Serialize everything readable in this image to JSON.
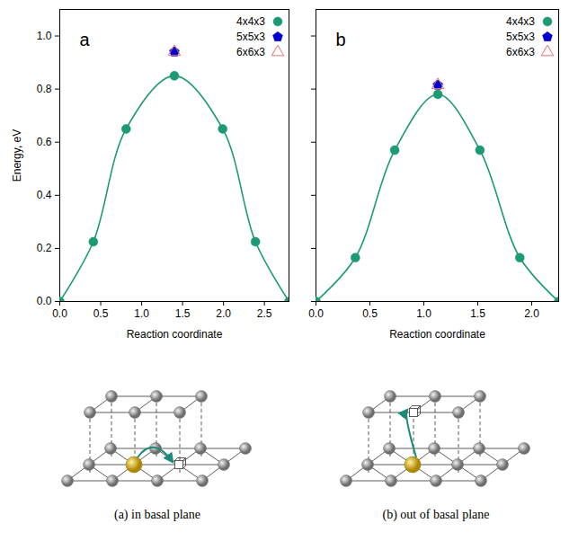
{
  "chart_data": [
    {
      "type": "line",
      "panel": "a",
      "y_label": "Energy, eV",
      "x_label": "Reaction coordinate",
      "xlim": [
        0,
        2.8
      ],
      "xticks": [
        {
          "value": 0,
          "label": "0.0"
        },
        {
          "value": 0.5,
          "label": "0.5"
        },
        {
          "value": 1,
          "label": "1.0"
        },
        {
          "value": 1.5,
          "label": "1.5"
        },
        {
          "value": 2,
          "label": "2.0"
        },
        {
          "value": 2.5,
          "label": "2.5"
        }
      ],
      "ylim": [
        0,
        1.1
      ],
      "yticks": [
        {
          "value": 0,
          "label": "0.0"
        },
        {
          "value": 0.2,
          "label": "0.2"
        },
        {
          "value": 0.4,
          "label": "0.4"
        },
        {
          "value": 0.6,
          "label": "0.6"
        },
        {
          "value": 0.8,
          "label": "0.8"
        },
        {
          "value": 1,
          "label": "1.0"
        }
      ],
      "grid": false,
      "legend": "top-right",
      "series": [
        {
          "name": "4x4x3",
          "type": "line",
          "color": "#1b9a74",
          "marker": "circle",
          "x": [
            0,
            0.41,
            0.81,
            1.4,
            1.99,
            2.39,
            2.8
          ],
          "values": [
            0,
            0.225,
            0.65,
            0.85,
            0.65,
            0.225,
            0
          ]
        },
        {
          "name": "5x5x3",
          "type": "scatter",
          "color": "#0000cc",
          "marker": "pentagon",
          "x": [
            1.4
          ],
          "values": [
            0.94
          ]
        },
        {
          "name": "6x6x3",
          "type": "scatter",
          "color": "#e07070",
          "marker": "triangle-open",
          "x": [
            1.4
          ],
          "values": [
            0.94
          ]
        }
      ]
    },
    {
      "type": "line",
      "panel": "b",
      "x_label": "Reaction coordinate",
      "xlim": [
        0,
        2.25
      ],
      "xticks": [
        {
          "value": 0,
          "label": "0.0"
        },
        {
          "value": 0.5,
          "label": "0.5"
        },
        {
          "value": 1,
          "label": "1.0"
        },
        {
          "value": 1.5,
          "label": "1.5"
        },
        {
          "value": 2,
          "label": "2.0"
        }
      ],
      "ylim": [
        0,
        1.1
      ],
      "yticks": [
        {
          "value": 0,
          "label": "0.0"
        },
        {
          "value": 0.2,
          "label": "0.2"
        },
        {
          "value": 0.4,
          "label": "0.4"
        },
        {
          "value": 0.6,
          "label": "0.6"
        },
        {
          "value": 0.8,
          "label": "0.8"
        },
        {
          "value": 1,
          "label": "1.0"
        }
      ],
      "grid": false,
      "legend": "top-right",
      "tick_labels": "x",
      "series": [
        {
          "name": "4x4x3",
          "type": "line",
          "color": "#1b9a74",
          "marker": "circle",
          "x": [
            0,
            0.365,
            0.73,
            1.13,
            1.52,
            1.89,
            2.25
          ],
          "values": [
            0,
            0.165,
            0.57,
            0.78,
            0.57,
            0.165,
            0
          ]
        },
        {
          "name": "5x5x3",
          "type": "scatter",
          "color": "#0000cc",
          "marker": "pentagon",
          "x": [
            1.13
          ],
          "values": [
            0.815
          ]
        },
        {
          "name": "6x6x3",
          "type": "scatter",
          "color": "#e07070",
          "marker": "triangle-open",
          "x": [
            1.13
          ],
          "values": [
            0.815
          ]
        }
      ]
    }
  ],
  "captions": [
    "(a) in basal plane",
    "(b) out of basal plane"
  ]
}
